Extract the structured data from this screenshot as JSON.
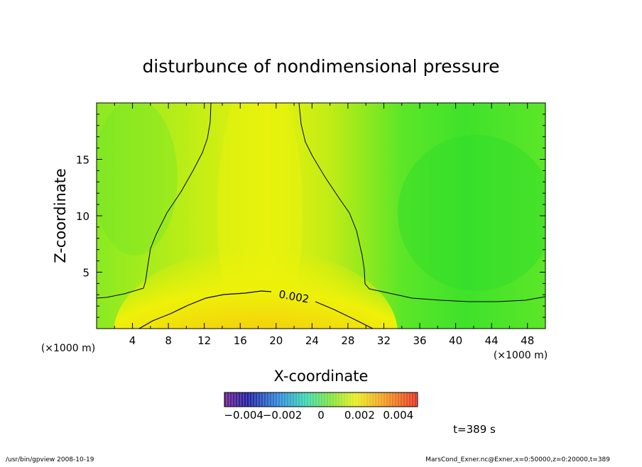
{
  "chart_data": {
    "type": "heatmap",
    "title": "disturbunce of nondimensional pressure",
    "xlabel": "X-coordinate",
    "ylabel": "Z-coordinate",
    "x_unit": "(×1000 m)",
    "y_unit": "(×1000 m)",
    "xlim": [
      0,
      50
    ],
    "ylim": [
      0,
      20
    ],
    "x_ticks": [
      "4",
      "8",
      "12",
      "16",
      "20",
      "24",
      "28",
      "32",
      "36",
      "40",
      "44",
      "48"
    ],
    "y_ticks": [
      "5",
      "10",
      "15"
    ],
    "contour_level_label": "0.002",
    "colorbar": {
      "vmin": -0.005,
      "vmax": 0.005,
      "tick_labels": [
        "−0.004",
        "−0.002",
        "0",
        "0.002",
        "0.004"
      ]
    },
    "time_label": "t=389 s",
    "footer_left": "/usr/bin/gpview   2008-10-19",
    "footer_right": "MarsCond_Exner.nc@Exner,x=0:50000,z=0:20000,t=389",
    "field_samples": [
      {
        "x": 18,
        "z": 0.5,
        "value": 0.0035
      },
      {
        "x": 18,
        "z": 3,
        "value": 0.002
      },
      {
        "x": 19,
        "z": 8,
        "value": 0.0016
      },
      {
        "x": 17,
        "z": 15,
        "value": 0.0013
      },
      {
        "x": 4,
        "z": 10,
        "value": 0.0008
      },
      {
        "x": 40,
        "z": 10,
        "value": 0.0001
      },
      {
        "x": 40,
        "z": 1,
        "value": 0.0008
      }
    ]
  }
}
